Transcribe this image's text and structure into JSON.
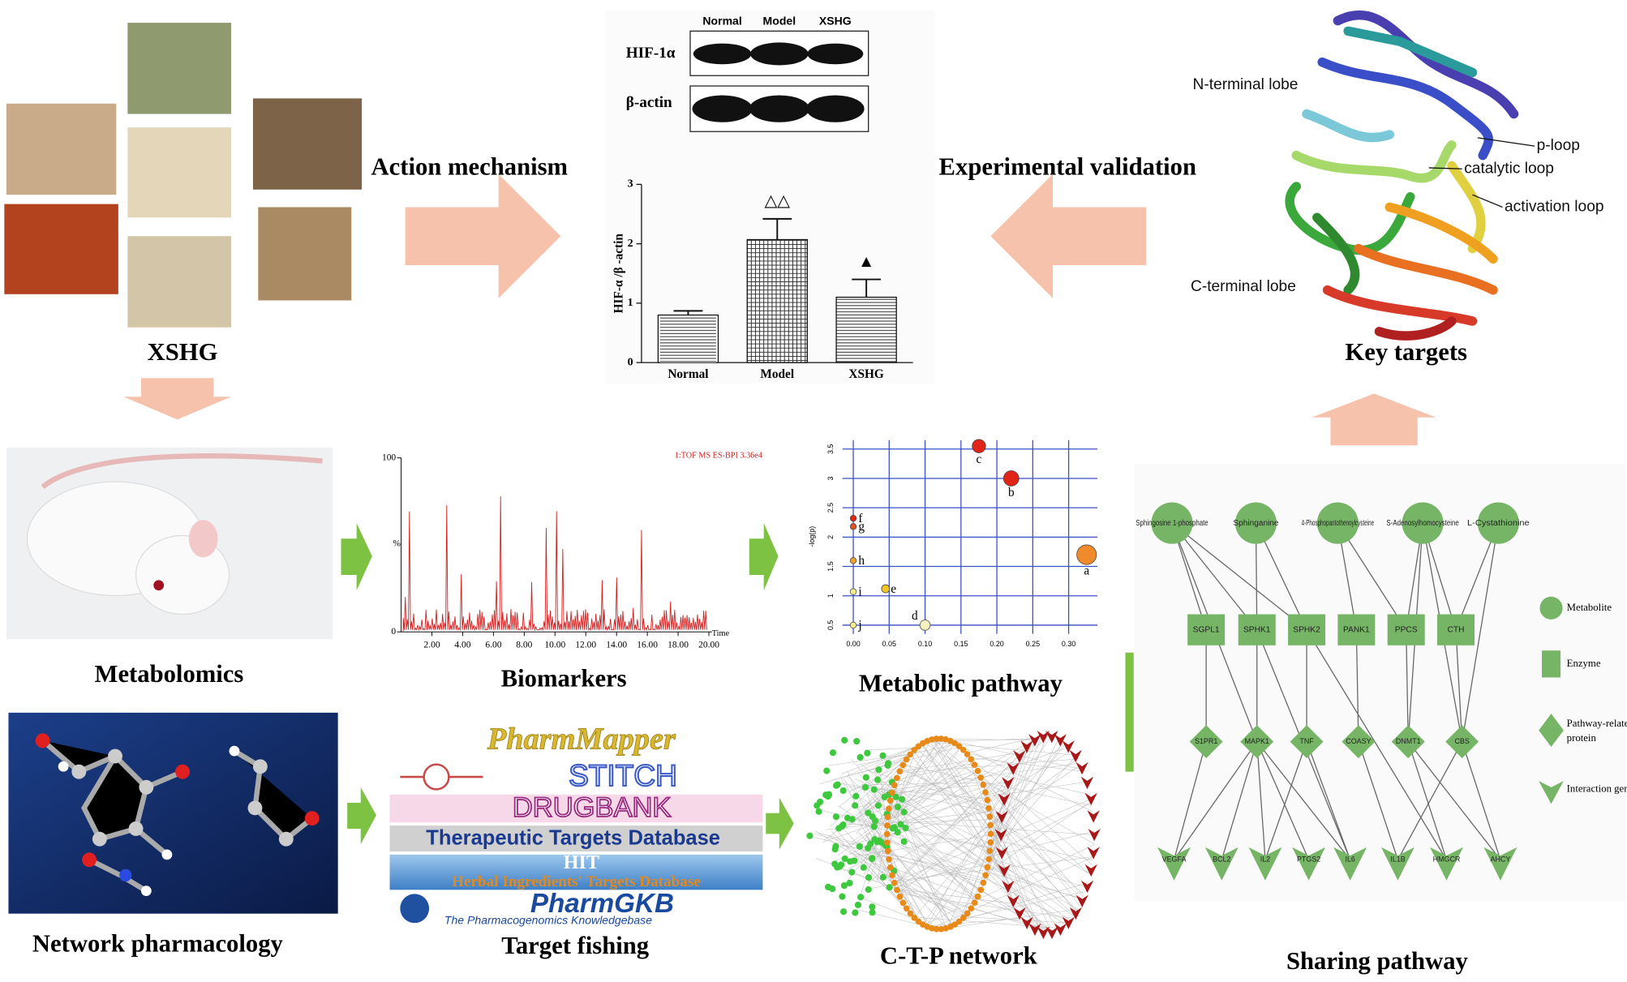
{
  "labels": {
    "xshg": "XSHG",
    "action": "Action mechanism",
    "experimental": "Experimental validation",
    "key_targets": "Key targets",
    "metabolomics": "Metabolomics",
    "biomarkers": "Biomarkers",
    "metabolic_pathway": "Metabolic pathway",
    "network_pharmacology": "Network pharmacology",
    "target_fishing": "Target fishing",
    "ctp": "C-T-P network",
    "sharing": "Sharing pathway"
  },
  "western_blot": {
    "lanes": [
      "Normal",
      "Model",
      "XSHG"
    ],
    "rows": [
      "HIF-1α",
      "β-actin"
    ]
  },
  "bar_chart": {
    "type": "bar",
    "ylabel": "HIF-α /β -actin",
    "categories": [
      "Normal",
      "Model",
      "XSHG"
    ],
    "values": [
      0.8,
      2.07,
      1.1
    ],
    "errors": [
      0.07,
      0.35,
      0.3
    ],
    "ylim": [
      0,
      3
    ],
    "yticks": [
      0,
      1,
      2,
      3
    ],
    "annotations": [
      {
        "category": 1,
        "text": "△△"
      },
      {
        "category": 2,
        "text": "▲"
      }
    ]
  },
  "chromatogram": {
    "title": "1:TOF MS ES-BPI 3.36e4",
    "ylabel": "%",
    "xlabel": "Time",
    "xlim": [
      0,
      20.2
    ],
    "xticks": [
      {
        "value": 2,
        "label": "2.00"
      },
      {
        "value": 4,
        "label": "4.00"
      },
      {
        "value": 6,
        "label": "6.00"
      },
      {
        "value": 8,
        "label": "8.00"
      },
      {
        "value": 10,
        "label": "10.00"
      },
      {
        "value": 12,
        "label": "12.00"
      },
      {
        "value": 14,
        "label": "14.00"
      },
      {
        "value": 16,
        "label": "16.00"
      },
      {
        "value": 18,
        "label": "18.00"
      },
      {
        "value": 20,
        "label": "20.00"
      }
    ],
    "ylim": [
      0,
      100
    ],
    "yticks": [
      0,
      100
    ]
  },
  "scatter": {
    "type": "scatter",
    "ylabel": "-log(p)",
    "xlim": [
      -0.015,
      0.34
    ],
    "ylim": [
      0.35,
      3.65
    ],
    "xticks": [
      {
        "value": 0,
        "label": "0.00"
      },
      {
        "value": 0.05,
        "label": "0.05"
      },
      {
        "value": 0.1,
        "label": "0.10"
      },
      {
        "value": 0.15,
        "label": "0.15"
      },
      {
        "value": 0.2,
        "label": "0.20"
      },
      {
        "value": 0.25,
        "label": "0.25"
      },
      {
        "value": 0.3,
        "label": "0.30"
      }
    ],
    "yticks": [
      0.5,
      1,
      1.5,
      2,
      2.5,
      3,
      3.5
    ],
    "points": {
      "labels": [
        "a",
        "b",
        "c",
        "d",
        "e",
        "f",
        "g",
        "h",
        "i",
        "j"
      ],
      "x": [
        0.325,
        0.22,
        0.175,
        0.1,
        0.045,
        0,
        0,
        0,
        0,
        0
      ],
      "y": [
        1.7,
        3.0,
        3.55,
        0.5,
        1.12,
        2.32,
        2.18,
        1.6,
        1.07,
        0.5
      ],
      "colors": [
        "#f08a2a",
        "#e02418",
        "#e02418",
        "#f6f1c0",
        "#f0c52a",
        "#e02418",
        "#e05028",
        "#f0a030",
        "#f6ec90",
        "#f6ec90"
      ]
    }
  },
  "protein": {
    "n_lobe": "N-terminal lobe",
    "p_loop": "p-loop",
    "catalytic": "catalytic loop",
    "activation": "activation loop",
    "c_lobe": "C-terminal lobe"
  },
  "databases": [
    "PharmMapper",
    "STITCH",
    "DRUGBANK",
    "Therapeutic Targets Database",
    "HIT",
    "Herbal Ingredients' Targets Database",
    "PharmGKB",
    "The Pharmacogenomics Knowledgebase"
  ],
  "sharing": {
    "metabolites": [
      "Sphingosine 1-phosphate",
      "Sphinganine",
      "4-Phosphopantothenoylcysteine",
      "S-Adenosylhomocysteine",
      "L-Cystathionine"
    ],
    "enzymes": [
      "SGPL1",
      "SPHK1",
      "SPHK2",
      "PANK1",
      "PPCS",
      "CTH"
    ],
    "proteins": [
      "S1PR1",
      "MAPK1",
      "TNF",
      "COASY",
      "DNMT1",
      "CBS"
    ],
    "genes": [
      "VEGFA",
      "BCL2",
      "IL2",
      "PTGS2",
      "IL6",
      "IL1B",
      "HMGCR",
      "AHCY"
    ],
    "legend": [
      "Metabolite",
      "Enzyme",
      "Pathway-related protein",
      "Interaction genes"
    ]
  }
}
